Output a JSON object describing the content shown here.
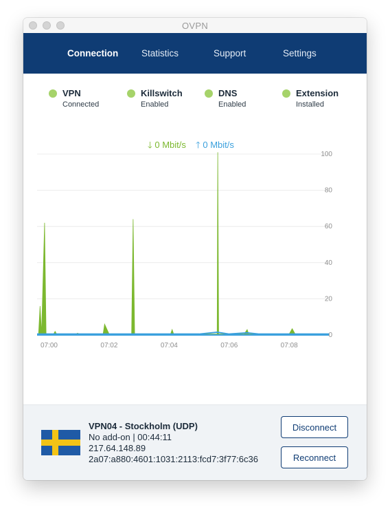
{
  "window": {
    "title": "OVPN"
  },
  "nav": {
    "tabs": [
      {
        "label": "Connection",
        "active": true
      },
      {
        "label": "Statistics"
      },
      {
        "label": "Support"
      },
      {
        "label": "Settings"
      }
    ]
  },
  "status": [
    {
      "label": "VPN",
      "value": "Connected",
      "color": "#a6d36a"
    },
    {
      "label": "Killswitch",
      "value": "Enabled",
      "color": "#a6d36a"
    },
    {
      "label": "DNS",
      "value": "Enabled",
      "color": "#a6d36a"
    },
    {
      "label": "Extension",
      "value": "Installed",
      "color": "#a6d36a"
    }
  ],
  "speed": {
    "download": "0 Mbit/s",
    "upload": "0 Mbit/s"
  },
  "chart_data": {
    "type": "area",
    "xlabel": "",
    "ylabel": "",
    "ylim": [
      0,
      100
    ],
    "yticks": [
      "100",
      "80",
      "60",
      "40",
      "20",
      "0"
    ],
    "xticks": [
      "07:00",
      "07:02",
      "07:04",
      "07:06",
      "07:08"
    ],
    "series": [
      {
        "color": "#7cb82f",
        "x": [
          -0.4,
          -0.35,
          -0.3,
          -0.25,
          -0.15,
          -0.1,
          0.05,
          0.15,
          0.2,
          0.25,
          0.3,
          0.5,
          0.9,
          0.95,
          1.0,
          1.1,
          1.2,
          1.3,
          1.8,
          1.85,
          2.0,
          2.4,
          2.7,
          2.75,
          2.8,
          2.85,
          2.95,
          3.0,
          3.3,
          3.5,
          4.0,
          4.05,
          4.1,
          4.15,
          4.2,
          4.3,
          4.5,
          4.6,
          5.0,
          5.5,
          5.6,
          5.62,
          5.65,
          5.7,
          5.8,
          6.0,
          6.2,
          6.4,
          6.5,
          6.6,
          6.65,
          6.7,
          6.8,
          7.0,
          7.2,
          7.4,
          7.5,
          8.0,
          8.1,
          8.2,
          8.25,
          8.3,
          8.4,
          8.9,
          9.3
        ],
        "values": [
          0.5,
          0.5,
          16,
          0.5,
          62,
          0.5,
          0.5,
          0.5,
          2,
          0.5,
          0.5,
          0.5,
          0.5,
          1,
          0.5,
          0.5,
          0.5,
          0.5,
          0.5,
          6,
          0.5,
          0.5,
          0.5,
          0.5,
          64,
          0.5,
          0.5,
          0.5,
          0.5,
          0.5,
          0.5,
          0.5,
          3,
          0.5,
          0.5,
          0.5,
          0.5,
          0.5,
          0.5,
          0.5,
          0.5,
          101,
          0.5,
          0.5,
          0.5,
          0.5,
          0.5,
          0.5,
          0.5,
          3,
          0.5,
          0.5,
          0.5,
          0.5,
          0.5,
          0.5,
          0.5,
          0.5,
          3.5,
          0.5,
          0.5,
          0.5,
          0.5,
          0.5,
          0.5
        ]
      },
      {
        "color": "#3aa0dd",
        "x": [
          -0.4,
          0.0,
          1.0,
          2.0,
          3.0,
          4.0,
          5.0,
          5.6,
          6.0,
          6.6,
          7.0,
          8.0,
          8.9,
          9.3
        ],
        "values": [
          0.5,
          0.5,
          0.5,
          0.5,
          0.5,
          0.5,
          0.5,
          1.5,
          0.5,
          1.2,
          0.5,
          0.5,
          0.5,
          0.5
        ]
      }
    ],
    "grid": true
  },
  "server": {
    "flag": "sweden-flag",
    "name": "VPN04 - Stockholm (UDP)",
    "addon": "No add-on | 00:44:11",
    "ipv4": "217.64.148.89",
    "ipv6": "2a07:a880:4601:1031:2113:fcd7:3f77:6c36"
  },
  "actions": {
    "disconnect": "Disconnect",
    "reconnect": "Reconnect"
  }
}
